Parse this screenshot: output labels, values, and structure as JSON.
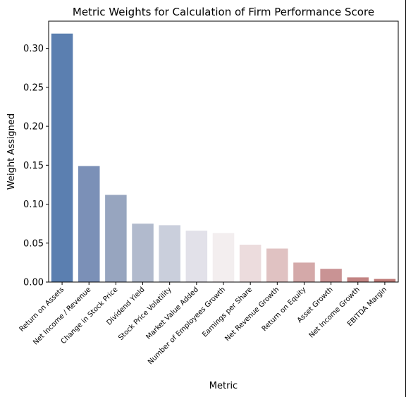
{
  "chart_data": {
    "type": "bar",
    "title": "Metric Weights for Calculation of Firm Performance Score",
    "xlabel": "Metric",
    "ylabel": "Weight Assigned",
    "ylim": [
      0,
      0.335
    ],
    "yticks": [
      "0.00",
      "0.05",
      "0.10",
      "0.15",
      "0.20",
      "0.25",
      "0.30"
    ],
    "grid": false,
    "categories": [
      "Return on Assets",
      "Net Income / Revenue",
      "Change in Stock Price",
      "Dividend Yield",
      "Stock Price Volatility",
      "Market Value Added",
      "Number of Employees Growth",
      "Earnings per Share",
      "Net Revenue Growth",
      "Return on Equity",
      "Asset Growth",
      "Net Income Growth",
      "EBITDA Margin"
    ],
    "values": [
      0.319,
      0.149,
      0.112,
      0.075,
      0.073,
      0.066,
      0.063,
      0.048,
      0.043,
      0.025,
      0.017,
      0.006,
      0.004
    ],
    "colors": [
      "#5b7fb0",
      "#7b90b7",
      "#97a5bf",
      "#b1bacd",
      "#cacfdc",
      "#e2e1e9",
      "#f3eeef",
      "#ecdcdd",
      "#e0c2c2",
      "#d4a9a9",
      "#c99394",
      "#c28382",
      "#bf7b78"
    ]
  }
}
